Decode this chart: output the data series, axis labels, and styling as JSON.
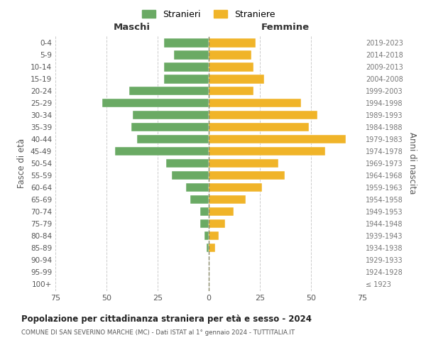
{
  "age_groups": [
    "100+",
    "95-99",
    "90-94",
    "85-89",
    "80-84",
    "75-79",
    "70-74",
    "65-69",
    "60-64",
    "55-59",
    "50-54",
    "45-49",
    "40-44",
    "35-39",
    "30-34",
    "25-29",
    "20-24",
    "15-19",
    "10-14",
    "5-9",
    "0-4"
  ],
  "birth_years": [
    "≤ 1923",
    "1924-1928",
    "1929-1933",
    "1934-1938",
    "1939-1943",
    "1944-1948",
    "1949-1953",
    "1954-1958",
    "1959-1963",
    "1964-1968",
    "1969-1973",
    "1974-1978",
    "1979-1983",
    "1984-1988",
    "1989-1993",
    "1994-1998",
    "1999-2003",
    "2004-2008",
    "2009-2013",
    "2014-2018",
    "2019-2023"
  ],
  "maschi": [
    0,
    0,
    0,
    1,
    2,
    4,
    4,
    9,
    11,
    18,
    21,
    46,
    35,
    38,
    37,
    52,
    39,
    22,
    22,
    17,
    22
  ],
  "femmine": [
    0,
    0,
    0,
    3,
    5,
    8,
    12,
    18,
    26,
    37,
    34,
    57,
    67,
    49,
    53,
    45,
    22,
    27,
    22,
    21,
    23
  ],
  "maschi_color": "#6aaa64",
  "femmine_color": "#f0b429",
  "background_color": "#ffffff",
  "grid_color": "#cccccc",
  "title": "Popolazione per cittadinanza straniera per età e sesso - 2024",
  "subtitle": "COMUNE DI SAN SEVERINO MARCHE (MC) - Dati ISTAT al 1° gennaio 2024 - TUTTITALIA.IT",
  "xlabel_left": "Maschi",
  "xlabel_right": "Femmine",
  "ylabel_left": "Fasce di età",
  "ylabel_right": "Anni di nascita",
  "xlim": 75,
  "legend_stranieri": "Stranieri",
  "legend_straniere": "Straniere"
}
